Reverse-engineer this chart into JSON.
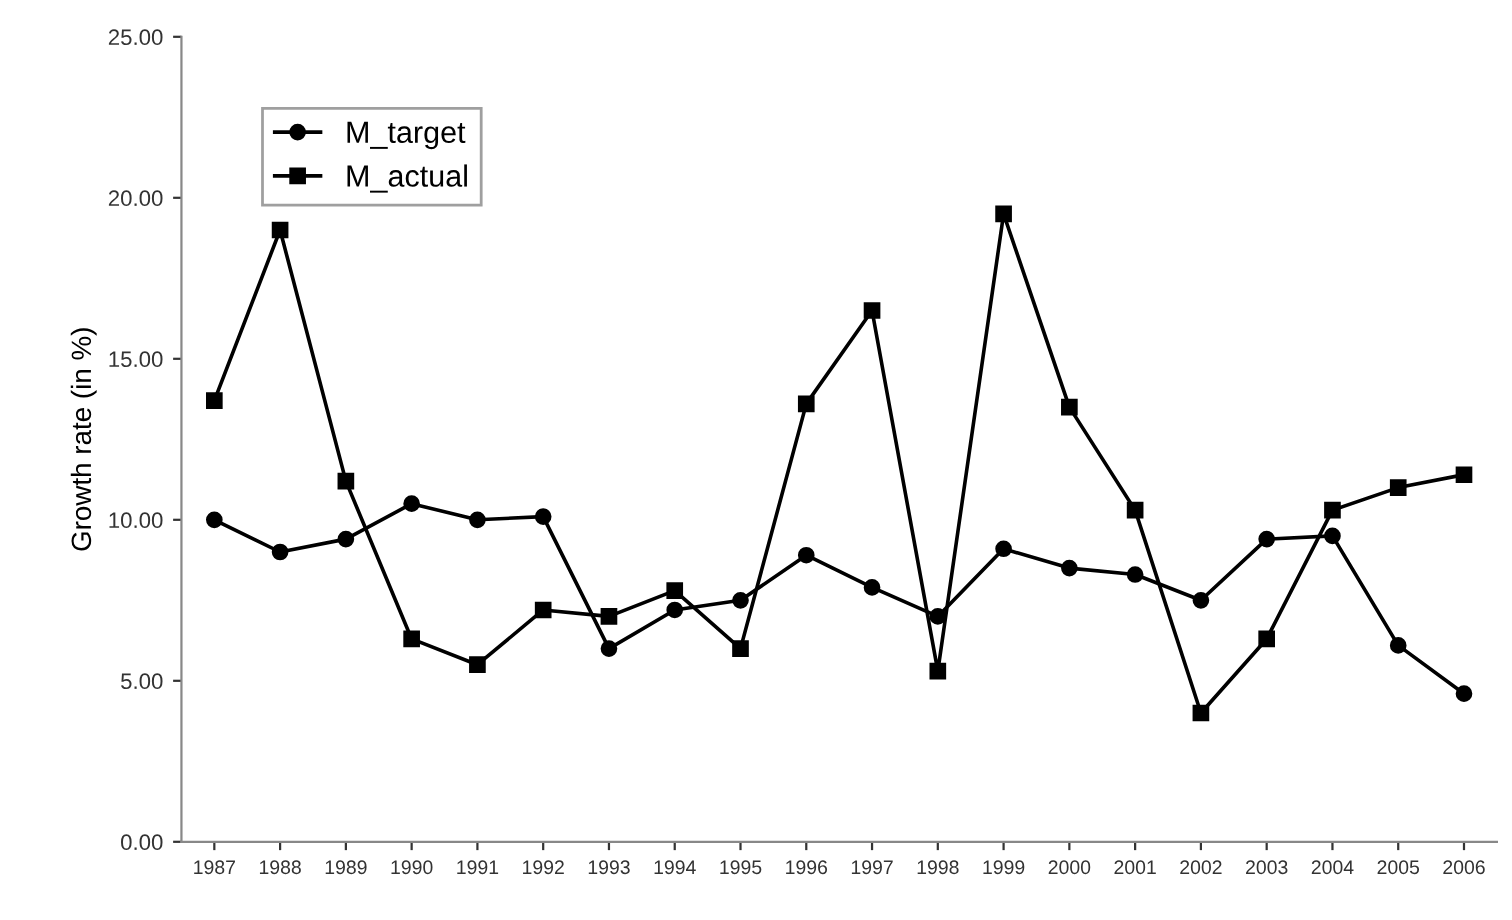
{
  "chart_data": {
    "type": "line",
    "ylabel": "Growth rate (in %)",
    "categories": [
      "1987",
      "1988",
      "1989",
      "1990",
      "1991",
      "1992",
      "1993",
      "1994",
      "1995",
      "1996",
      "1997",
      "1998",
      "1999",
      "2000",
      "2001",
      "2002",
      "2003",
      "2004",
      "2005",
      "2006"
    ],
    "series": [
      {
        "name": "M_target",
        "color": "#000000",
        "marker": "circle",
        "values": [
          10.0,
          9.0,
          9.4,
          10.5,
          10.0,
          10.1,
          6.0,
          7.2,
          7.5,
          8.9,
          7.9,
          7.0,
          9.1,
          8.5,
          8.3,
          7.5,
          9.4,
          9.5,
          6.1,
          4.6
        ]
      },
      {
        "name": "M_actual",
        "color": "#000000",
        "marker": "square",
        "values": [
          13.7,
          19.0,
          11.2,
          6.3,
          5.5,
          7.2,
          7.0,
          7.8,
          6.0,
          13.6,
          16.5,
          5.3,
          19.5,
          13.5,
          10.3,
          4.0,
          6.3,
          10.3,
          11.0,
          11.4
        ]
      }
    ],
    "ylim": [
      0,
      25
    ],
    "yticks": [
      {
        "value": 0,
        "label": "0.00"
      },
      {
        "value": 5,
        "label": "5.00"
      },
      {
        "value": 10,
        "label": "10.00"
      },
      {
        "value": 15,
        "label": "15.00"
      },
      {
        "value": 20,
        "label": "20.00"
      },
      {
        "value": 25,
        "label": "25.00"
      }
    ],
    "grid": false,
    "legend": "top left",
    "line_style": "solid"
  }
}
